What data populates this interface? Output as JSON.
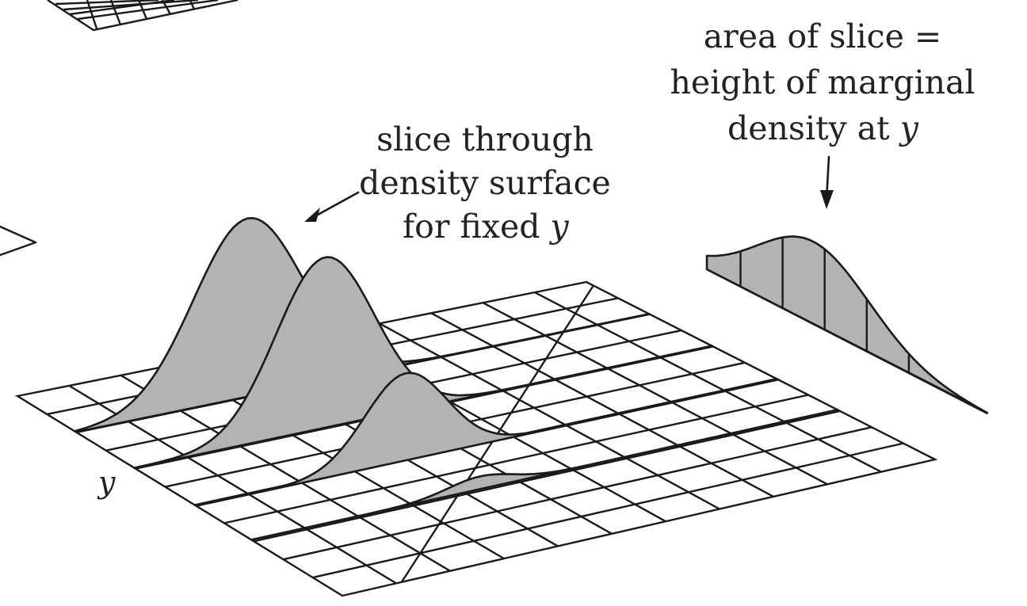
{
  "labels": {
    "slice_annotation": [
      "slice through",
      "density surface",
      "for fixed"
    ],
    "area_annotation": [
      "area of slice =",
      "height of marginal",
      "density at"
    ],
    "var_y": "y"
  }
}
